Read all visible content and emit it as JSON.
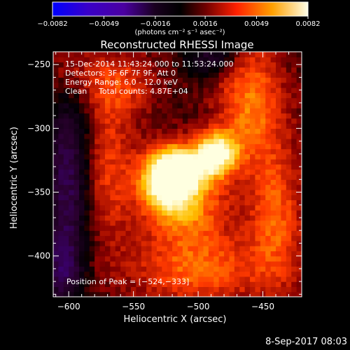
{
  "chart_data": {
    "type": "heatmap",
    "title": "Reconstructed RHESSI Image",
    "xlabel": "Heliocentric X (arcsec)",
    "ylabel": "Heliocentric Y (arcsec)",
    "xlim": [
      -612,
      -420
    ],
    "ylim": [
      -432,
      -240
    ],
    "x_ticks": [
      -600,
      -550,
      -500,
      -450
    ],
    "x_tick_labels": [
      "−600",
      "−550",
      "−500",
      "−450"
    ],
    "y_ticks": [
      -250,
      -300,
      -350,
      -400
    ],
    "y_tick_labels": [
      "−250",
      "−300",
      "−350",
      "−400"
    ],
    "colormap": [
      "#0000ff",
      "#4a00b0",
      "#2b0030",
      "#000000",
      "#8a0000",
      "#ff3a00",
      "#ffc000",
      "#ffffe0"
    ],
    "colorbar": {
      "range": [
        -0.0082,
        0.0082
      ],
      "ticks": [
        -0.0082,
        -0.0049,
        -0.0016,
        0.0016,
        0.0049,
        0.0082
      ],
      "tick_labels": [
        "−0.0082",
        "−0.0049",
        "−0.0016",
        "0.0016",
        "0.0049",
        "0.0082"
      ],
      "units": "(photons cm⁻² s⁻¹ asec⁻²)"
    },
    "sources": [
      {
        "x": -524,
        "y": -338,
        "value": 0.0082,
        "sx": 14,
        "sy": 16
      },
      {
        "x": -485,
        "y": -318,
        "value": 0.0068,
        "sx": 11,
        "sy": 11
      },
      {
        "x": -505,
        "y": -330,
        "value": 0.0045,
        "sx": 16,
        "sy": 12
      },
      {
        "x": -510,
        "y": -360,
        "value": 0.0042,
        "sx": 22,
        "sy": 20
      },
      {
        "x": -460,
        "y": -280,
        "value": 0.0038,
        "sx": 18,
        "sy": 35
      },
      {
        "x": -440,
        "y": -370,
        "value": 0.0032,
        "sx": 15,
        "sy": 40
      },
      {
        "x": -500,
        "y": -410,
        "value": 0.0035,
        "sx": 35,
        "sy": 20
      },
      {
        "x": -570,
        "y": -330,
        "value": 0.0025,
        "sx": 15,
        "sy": 45
      },
      {
        "x": -560,
        "y": -265,
        "value": 0.0022,
        "sx": 20,
        "sy": 18
      },
      {
        "x": -600,
        "y": -255,
        "value": 0.0015,
        "sx": 15,
        "sy": 15
      },
      {
        "x": -600,
        "y": -340,
        "value": -0.0042,
        "sx": 12,
        "sy": 50
      },
      {
        "x": -605,
        "y": -410,
        "value": -0.0032,
        "sx": 10,
        "sy": 20
      },
      {
        "x": -490,
        "y": -245,
        "value": -0.003,
        "sx": 14,
        "sy": 10
      }
    ],
    "peak": {
      "x": -524,
      "y": -333
    },
    "info": {
      "time_range": "15-Dec-2014 11:43:24.000 to 11:53:24.000",
      "detectors": "Detectors: 3F 6F 7F 9F, Att 0",
      "energy_range": "Energy Range: 6.0 - 12.0 keV",
      "algorithm": "Clean",
      "total_counts": "Total counts: 4.87E+04",
      "peak_label": "Position of Peak = [−524,−333]"
    }
  },
  "footer": {
    "timestamp": "8-Sep-2017 08:03"
  }
}
